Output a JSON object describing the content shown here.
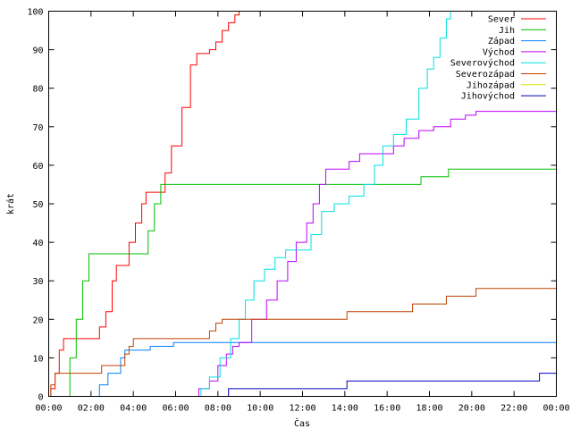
{
  "chart_data": {
    "type": "line",
    "title": "",
    "xlabel": "Čas",
    "ylabel": "krát",
    "xlim": [
      0,
      24
    ],
    "ylim": [
      0,
      100
    ],
    "grid": false,
    "legend_placement": "top-right",
    "xticks": [
      {
        "value": 0,
        "label": "00:00"
      },
      {
        "value": 2,
        "label": "02:00"
      },
      {
        "value": 4,
        "label": "04:00"
      },
      {
        "value": 6,
        "label": "06:00"
      },
      {
        "value": 8,
        "label": "08:00"
      },
      {
        "value": 10,
        "label": "10:00"
      },
      {
        "value": 12,
        "label": "12:00"
      },
      {
        "value": 14,
        "label": "14:00"
      },
      {
        "value": 16,
        "label": "16:00"
      },
      {
        "value": 18,
        "label": "18:00"
      },
      {
        "value": 20,
        "label": "20:00"
      },
      {
        "value": 22,
        "label": "22:00"
      },
      {
        "value": 24,
        "label": "00:00"
      }
    ],
    "yticks": [
      0,
      10,
      20,
      30,
      40,
      50,
      60,
      70,
      80,
      90,
      100
    ],
    "series": [
      {
        "name": "Sever",
        "color": "#ff0000",
        "points": [
          [
            0,
            0
          ],
          [
            0.1,
            2
          ],
          [
            0.3,
            6
          ],
          [
            0.5,
            12
          ],
          [
            0.7,
            15
          ],
          [
            2.2,
            15
          ],
          [
            2.4,
            18
          ],
          [
            2.7,
            22
          ],
          [
            3.0,
            30
          ],
          [
            3.2,
            34
          ],
          [
            3.6,
            34
          ],
          [
            3.8,
            40
          ],
          [
            4.1,
            45
          ],
          [
            4.4,
            50
          ],
          [
            4.6,
            53
          ],
          [
            5.2,
            53
          ],
          [
            5.5,
            58
          ],
          [
            5.8,
            65
          ],
          [
            6.3,
            75
          ],
          [
            6.7,
            86
          ],
          [
            7.0,
            89
          ],
          [
            7.6,
            90
          ],
          [
            7.9,
            92
          ],
          [
            8.2,
            95
          ],
          [
            8.5,
            97
          ],
          [
            8.8,
            99
          ],
          [
            9.0,
            100
          ]
        ]
      },
      {
        "name": "Jih",
        "color": "#00c000",
        "points": [
          [
            0,
            0
          ],
          [
            0.75,
            0
          ],
          [
            1.0,
            10
          ],
          [
            1.3,
            20
          ],
          [
            1.6,
            30
          ],
          [
            1.9,
            37
          ],
          [
            4.5,
            37
          ],
          [
            4.7,
            43
          ],
          [
            5.0,
            50
          ],
          [
            5.3,
            55
          ],
          [
            17.3,
            55
          ],
          [
            17.6,
            57
          ],
          [
            18.7,
            57
          ],
          [
            18.9,
            59
          ],
          [
            24,
            59
          ]
        ]
      },
      {
        "name": "Západ",
        "color": "#0080ff",
        "points": [
          [
            2.05,
            0
          ],
          [
            2.2,
            0
          ],
          [
            2.4,
            3
          ],
          [
            2.8,
            6
          ],
          [
            3.4,
            10
          ],
          [
            3.6,
            12
          ],
          [
            4.6,
            12
          ],
          [
            4.8,
            13
          ],
          [
            5.7,
            13
          ],
          [
            5.9,
            14
          ],
          [
            24,
            14
          ]
        ]
      },
      {
        "name": "Východ",
        "color": "#c000ff",
        "points": [
          [
            6.9,
            0
          ],
          [
            7.1,
            2
          ],
          [
            7.6,
            4
          ],
          [
            8.0,
            8
          ],
          [
            8.4,
            11
          ],
          [
            8.7,
            13
          ],
          [
            9.0,
            14
          ],
          [
            9.6,
            20
          ],
          [
            10.3,
            25
          ],
          [
            10.8,
            30
          ],
          [
            11.3,
            35
          ],
          [
            11.7,
            40
          ],
          [
            12.2,
            45
          ],
          [
            12.5,
            50
          ],
          [
            12.8,
            55
          ],
          [
            13.1,
            59
          ],
          [
            14.2,
            61
          ],
          [
            14.7,
            63
          ],
          [
            16.3,
            65
          ],
          [
            16.8,
            67
          ],
          [
            17.5,
            69
          ],
          [
            18.2,
            70
          ],
          [
            19.0,
            72
          ],
          [
            19.7,
            73
          ],
          [
            20.2,
            74
          ],
          [
            24,
            74
          ]
        ]
      },
      {
        "name": "Severovýchod",
        "color": "#00e0e0",
        "points": [
          [
            7.0,
            0
          ],
          [
            7.2,
            2
          ],
          [
            7.6,
            5
          ],
          [
            8.1,
            10
          ],
          [
            8.6,
            15
          ],
          [
            9.0,
            20
          ],
          [
            9.3,
            25
          ],
          [
            9.7,
            30
          ],
          [
            10.2,
            33
          ],
          [
            10.7,
            36
          ],
          [
            11.2,
            38
          ],
          [
            11.9,
            38
          ],
          [
            12.4,
            42
          ],
          [
            12.9,
            48
          ],
          [
            13.5,
            50
          ],
          [
            14.2,
            52
          ],
          [
            14.9,
            55
          ],
          [
            15.4,
            60
          ],
          [
            15.8,
            65
          ],
          [
            16.3,
            68
          ],
          [
            16.9,
            72
          ],
          [
            17.5,
            80
          ],
          [
            17.9,
            85
          ],
          [
            18.2,
            88
          ],
          [
            18.5,
            93
          ],
          [
            18.8,
            98
          ],
          [
            19.0,
            100
          ]
        ]
      },
      {
        "name": "Severozápad",
        "color": "#c04000",
        "points": [
          [
            0,
            0
          ],
          [
            0.1,
            3
          ],
          [
            0.3,
            6
          ],
          [
            2.3,
            6
          ],
          [
            2.5,
            8
          ],
          [
            3.4,
            8
          ],
          [
            3.6,
            11
          ],
          [
            3.8,
            13
          ],
          [
            4.0,
            15
          ],
          [
            7.4,
            15
          ],
          [
            7.6,
            17
          ],
          [
            7.9,
            19
          ],
          [
            8.2,
            20
          ],
          [
            13.8,
            20
          ],
          [
            14.1,
            22
          ],
          [
            16.9,
            22
          ],
          [
            17.2,
            24
          ],
          [
            18.5,
            24
          ],
          [
            18.8,
            26
          ],
          [
            19.8,
            26
          ],
          [
            20.2,
            28
          ],
          [
            24,
            28
          ]
        ]
      },
      {
        "name": "Jihozápad",
        "color": "#e0e000",
        "points": []
      },
      {
        "name": "Jihovýchod",
        "color": "#0000c0",
        "points": [
          [
            8.4,
            0
          ],
          [
            8.5,
            2
          ],
          [
            13.8,
            2
          ],
          [
            14.1,
            4
          ],
          [
            23.0,
            4
          ],
          [
            23.2,
            6
          ],
          [
            24,
            6
          ]
        ]
      }
    ]
  }
}
